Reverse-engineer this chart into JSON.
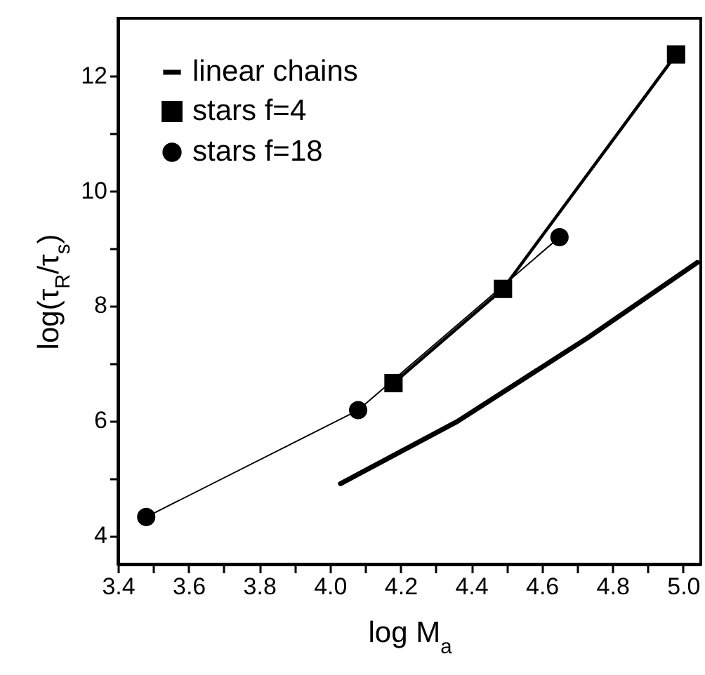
{
  "chart_data": {
    "type": "line",
    "xlabel": "log M$_{a}$",
    "ylabel": "log(τ$_{R}$/τ$_{s}$)",
    "xlim": [
      3.4,
      5.05
    ],
    "xticks": [
      3.4,
      {
        "value": 3.5,
        "label": null
      },
      3.6,
      {
        "value": 3.7,
        "label": null
      },
      3.8,
      {
        "value": 3.9,
        "label": null
      },
      {
        "value": 4,
        "label": "4.0"
      },
      {
        "value": 4.1,
        "label": null
      },
      4.2,
      {
        "value": 4.3,
        "label": null
      },
      4.4,
      {
        "value": 4.5,
        "label": null
      },
      4.6,
      {
        "value": 4.7,
        "label": null
      },
      4.8,
      {
        "value": 4.9,
        "label": null
      },
      {
        "value": 5,
        "label": "5.0"
      }
    ],
    "ylim": [
      3.5,
      13
    ],
    "yticks": [
      4,
      {
        "value": 5,
        "label": null
      },
      6,
      {
        "value": 7,
        "label": null
      },
      8,
      {
        "value": 9,
        "label": null
      },
      10,
      {
        "value": 11,
        "label": null
      },
      12
    ],
    "grid": false,
    "legend": "top left",
    "line_style": "solid",
    "series": [
      {
        "name": "linear chains",
        "color": "#000000",
        "marker": "none",
        "x": [
          4.03,
          4.36,
          4.73,
          5.04
        ],
        "values": [
          4.9,
          5.98,
          7.44,
          8.75
        ]
      },
      {
        "name": "stars f=4",
        "color": "#000000",
        "marker": "square",
        "x": [
          4.18,
          4.49,
          4.98
        ],
        "values": [
          6.65,
          8.29,
          12.37
        ]
      },
      {
        "name": "stars f=18",
        "color": "#000000",
        "marker": "circle",
        "x": [
          3.48,
          4.08,
          4.65
        ],
        "values": [
          4.32,
          6.18,
          9.19
        ]
      }
    ]
  }
}
